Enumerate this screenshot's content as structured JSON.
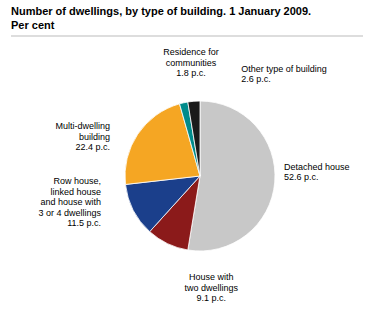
{
  "chart_data": {
    "type": "pie",
    "title": "Number of dwellings, by type of building. 1 January 2009.",
    "subtitle": "Per cent",
    "categories": [
      "Detached house",
      "House with\ntwo dwellings",
      "Row house,\nlinked house\nand house with\n3 or 4 dwellings",
      "Multi-dwelling\nbuilding",
      "Residence for\ncommunities",
      "Other type of building"
    ],
    "values": [
      52.6,
      9.1,
      11.5,
      22.4,
      1.8,
      2.6
    ],
    "value_labels": [
      "52.6 p.c.",
      "9.1 p.c.",
      "11.5 p.c.",
      "22.4 p.c.",
      "1.8 p.c.",
      "2.6 p.c."
    ],
    "colors": [
      "#c8c8c8",
      "#8b1a1a",
      "#1b3f8b",
      "#f5a623",
      "#008b8b",
      "#1a1a1a"
    ],
    "data_labels": true
  }
}
